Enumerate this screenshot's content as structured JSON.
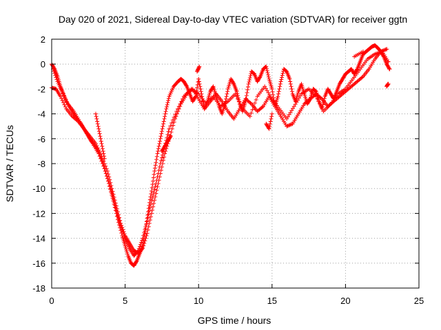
{
  "chart_data": {
    "type": "scatter",
    "title": "Day 020 of 2021, Sidereal Day-to-day VTEC variation (SDTVAR) for receiver ggtn",
    "xlabel": "GPS time / hours",
    "ylabel": "SDTVAR / TECUs",
    "xlim": [
      0,
      25
    ],
    "ylim": [
      -18,
      2
    ],
    "xticks": [
      "0",
      "5",
      "10",
      "15",
      "20",
      "25"
    ],
    "yticks": [
      "2",
      "0",
      "-2",
      "-4",
      "-6",
      "-8",
      "-10",
      "-12",
      "-14",
      "-16",
      "-18"
    ],
    "grid": true,
    "marker": "plus",
    "color": "#ff0000",
    "series": [
      {
        "x": [
          0.0,
          0.2,
          0.4,
          0.6,
          0.8,
          1.0,
          1.3,
          1.6,
          2.0,
          2.4,
          2.8,
          3.2,
          3.6,
          3.9,
          4.2,
          4.5,
          4.8,
          5.0,
          5.2,
          5.4,
          5.6,
          5.8,
          6.0,
          6.2,
          6.4,
          6.6,
          6.8,
          7.0,
          7.2,
          7.4,
          7.6,
          7.8,
          8.0,
          8.3,
          8.6,
          8.8,
          9.0,
          9.2,
          9.4,
          9.6,
          9.8,
          10.0,
          10.2,
          10.4,
          10.6,
          10.8,
          11.0,
          11.2,
          11.4,
          11.6,
          11.8,
          12.0,
          12.2,
          12.4,
          12.6,
          12.8,
          13.0,
          13.2,
          13.4,
          13.6,
          13.8,
          14.0,
          14.2,
          14.4,
          14.6,
          14.8,
          15.0,
          15.2,
          15.4,
          15.6,
          15.8,
          16.0,
          16.2,
          16.4,
          16.6,
          16.8,
          17.0,
          17.2,
          17.4,
          17.6,
          17.8,
          18.0,
          18.2,
          18.4,
          18.6,
          18.8,
          19.0,
          19.2,
          19.4,
          19.6,
          19.8,
          20.0,
          20.2,
          20.4,
          20.6,
          20.8,
          21.0,
          21.2,
          21.4,
          21.6,
          21.8,
          22.0,
          22.2,
          22.4,
          22.6,
          22.8,
          23.0
        ],
        "y": [
          0.0,
          -0.4,
          -1.0,
          -1.8,
          -2.4,
          -3.0,
          -3.6,
          -4.2,
          -4.8,
          -5.6,
          -6.4,
          -7.2,
          -8.4,
          -9.6,
          -11.0,
          -12.5,
          -13.8,
          -14.6,
          -15.4,
          -16.0,
          -16.2,
          -15.8,
          -15.2,
          -14.6,
          -13.2,
          -11.6,
          -10.2,
          -8.6,
          -7.2,
          -6.0,
          -4.8,
          -3.6,
          -2.6,
          -1.8,
          -1.4,
          -1.2,
          -1.4,
          -1.8,
          -2.4,
          -3.0,
          -2.6,
          -1.2,
          -2.4,
          -3.6,
          -3.0,
          -2.2,
          -1.8,
          -2.6,
          -3.4,
          -4.0,
          -3.2,
          -2.0,
          -1.2,
          -1.6,
          -2.2,
          -3.2,
          -3.8,
          -3.0,
          -1.6,
          -0.6,
          -0.8,
          -1.4,
          -1.0,
          -0.4,
          -0.2,
          -1.2,
          -2.0,
          -3.4,
          -2.6,
          -1.4,
          -0.4,
          -0.6,
          -1.2,
          -2.4,
          -3.0,
          -2.2,
          -1.6,
          -2.4,
          -3.2,
          -2.8,
          -2.0,
          -2.2,
          -3.0,
          -3.6,
          -2.6,
          -2.0,
          -2.4,
          -2.8,
          -2.2,
          -1.6,
          -1.2,
          -0.8,
          -0.6,
          -0.4,
          -0.8,
          -0.4,
          0.2,
          0.8,
          1.0,
          1.2,
          1.4,
          1.5,
          1.3,
          1.0,
          0.6,
          0.0,
          -0.4
        ]
      },
      {
        "x": [
          0.0,
          0.3,
          0.6,
          1.0,
          1.4,
          1.8,
          2.2,
          2.6,
          3.0,
          3.4,
          3.8,
          4.1,
          4.4,
          4.7,
          5.0,
          5.3,
          5.6,
          5.9,
          6.2,
          6.5,
          6.8,
          7.1,
          7.4,
          7.7,
          8.0,
          8.4,
          8.8,
          9.2,
          9.6,
          10.0,
          10.4,
          10.8,
          11.2,
          11.6,
          12.0,
          12.4,
          12.8,
          13.2,
          13.6,
          14.0,
          14.4,
          14.8,
          15.2,
          15.6,
          16.0,
          16.4,
          16.8,
          17.2,
          17.6,
          18.0,
          18.4,
          18.8,
          19.2,
          19.6,
          20.0,
          20.4,
          20.8,
          21.2,
          21.6,
          22.0,
          22.4,
          22.8
        ],
        "y": [
          -1.9,
          -2.0,
          -2.6,
          -3.6,
          -4.2,
          -4.6,
          -5.2,
          -5.8,
          -6.4,
          -7.4,
          -8.6,
          -10.0,
          -11.4,
          -12.8,
          -13.8,
          -14.4,
          -15.0,
          -15.2,
          -14.8,
          -13.6,
          -12.0,
          -10.4,
          -8.8,
          -7.2,
          -6.0,
          -4.4,
          -3.2,
          -2.4,
          -2.0,
          -2.8,
          -3.6,
          -3.0,
          -2.4,
          -3.0,
          -3.8,
          -4.4,
          -3.6,
          -2.8,
          -3.2,
          -3.8,
          -3.4,
          -2.6,
          -3.4,
          -4.2,
          -5.0,
          -4.8,
          -4.0,
          -3.2,
          -2.8,
          -2.4,
          -2.8,
          -3.4,
          -3.0,
          -2.6,
          -2.2,
          -1.8,
          -1.4,
          -1.0,
          -0.4,
          0.4,
          1.0,
          1.2
        ]
      },
      {
        "x": [
          0.1,
          0.4,
          0.7,
          1.1,
          1.5,
          1.9,
          2.3,
          2.7,
          3.1,
          3.5,
          3.8,
          4.1,
          4.4,
          4.7,
          5.0,
          5.3,
          5.6,
          5.9,
          6.2,
          6.5,
          6.8,
          7.1,
          7.4,
          7.7,
          8.0,
          8.5,
          9.0,
          9.5,
          10.0,
          10.5,
          11.0,
          11.5,
          12.0,
          12.5,
          13.0,
          13.5,
          14.0,
          14.5,
          15.0,
          15.5,
          16.0,
          16.5,
          17.0,
          17.5,
          18.0,
          18.5,
          19.0,
          19.5,
          20.0,
          20.5,
          21.0,
          21.5,
          22.0,
          22.5,
          22.9
        ],
        "y": [
          -0.4,
          -1.4,
          -2.2,
          -3.2,
          -3.8,
          -4.6,
          -5.4,
          -6.2,
          -6.8,
          -8.0,
          -9.2,
          -10.4,
          -11.8,
          -13.0,
          -14.0,
          -14.8,
          -15.4,
          -15.0,
          -14.0,
          -12.6,
          -11.0,
          -9.6,
          -8.0,
          -6.6,
          -5.2,
          -3.8,
          -2.6,
          -2.0,
          -2.4,
          -3.2,
          -2.6,
          -3.4,
          -3.0,
          -2.4,
          -3.6,
          -4.2,
          -2.6,
          -1.8,
          -2.8,
          -3.6,
          -4.4,
          -3.4,
          -2.4,
          -2.0,
          -2.6,
          -3.8,
          -3.2,
          -2.4,
          -2.0,
          -1.2,
          -0.4,
          0.4,
          0.8,
          1.0,
          0.2
        ]
      },
      {
        "x": [
          3.0,
          3.2,
          3.4,
          3.6,
          7.5,
          7.7,
          7.9,
          8.1,
          9.9,
          10.05,
          14.6,
          14.8,
          15.0,
          20.6,
          21.2,
          22.8,
          22.9
        ],
        "y": [
          -4.0,
          -5.2,
          -6.4,
          -7.6,
          -7.0,
          -6.6,
          -6.2,
          -5.8,
          -0.6,
          -0.2,
          -4.8,
          -5.2,
          -4.0,
          0.6,
          1.0,
          -1.8,
          -1.6
        ]
      }
    ]
  }
}
